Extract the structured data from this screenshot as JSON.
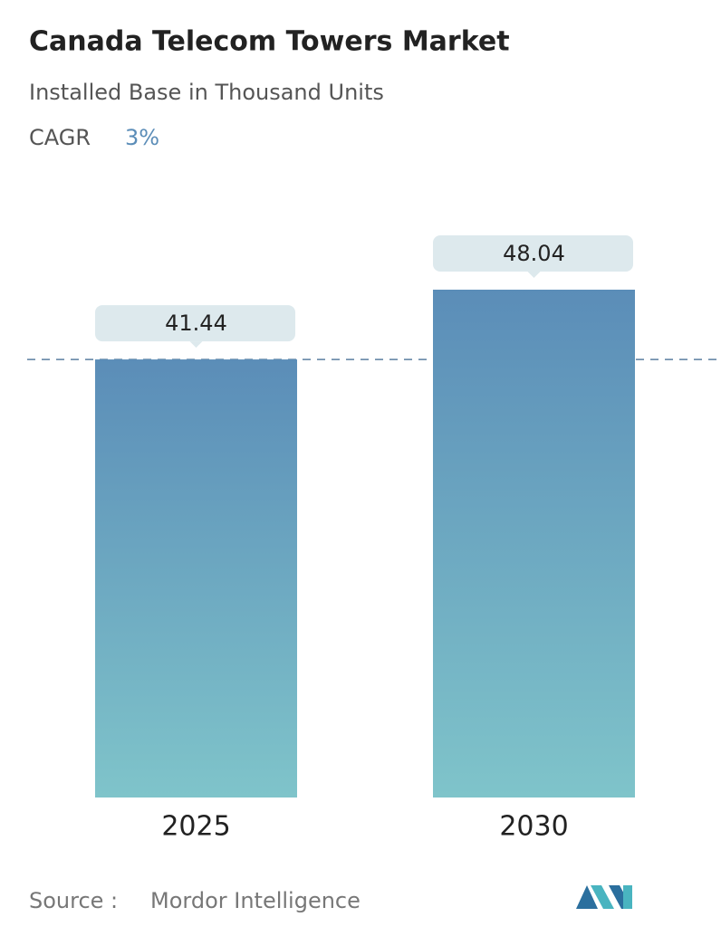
{
  "chart_data": {
    "type": "bar",
    "title": "Canada Telecom Towers Market",
    "subtitle": "Installed Base in Thousand Units",
    "cagr_label": "CAGR",
    "cagr_value": "3%",
    "categories": [
      "2025",
      "2030"
    ],
    "values": [
      41.44,
      48.04
    ],
    "colors": [
      "#5b8db8",
      "#7fc4ca"
    ],
    "source_label": "Source :",
    "source": "Mordor Intelligence"
  }
}
